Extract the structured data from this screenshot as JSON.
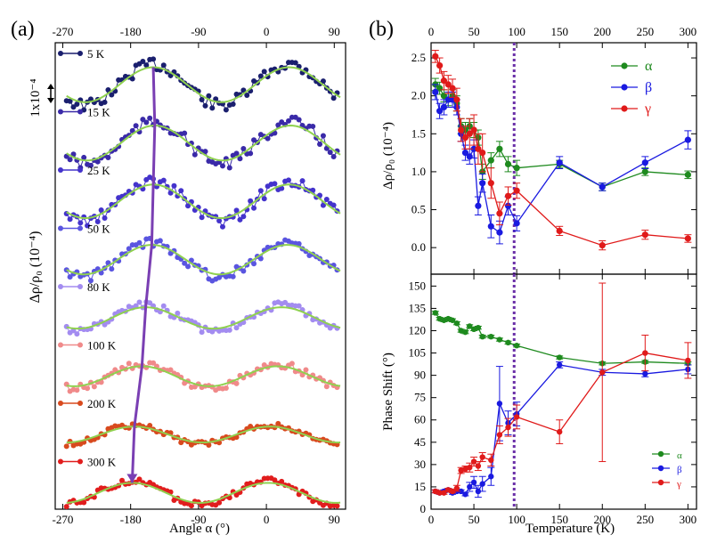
{
  "chart_data": [
    {
      "type": "scatter",
      "panel_label": "(a)",
      "title": "",
      "xlabel": "Angle α (°)",
      "ylabel": "Δρ/ρ₀ (10⁻⁴)",
      "scale_bar_label": "1x10⁻⁴",
      "xlim": [
        -280,
        105
      ],
      "xticks": [
        -270,
        -180,
        -90,
        0,
        90
      ],
      "xtick_labels": [
        "-270",
        "-180",
        "-90",
        "0",
        "90"
      ],
      "series": [
        {
          "name": "5 K",
          "color": "#1a1f6e",
          "offset": 8,
          "amp": 0.95,
          "phase": 132,
          "peak_x": -150
        },
        {
          "name": "15 K",
          "color": "#3a2aa8",
          "offset": 7,
          "amp": 0.95,
          "phase": 128,
          "peak_x": -148
        },
        {
          "name": "25 K",
          "color": "#4433cc",
          "offset": 6,
          "amp": 0.9,
          "phase": 122,
          "peak_x": -150
        },
        {
          "name": "50 K",
          "color": "#5a55e0",
          "offset": 5,
          "amp": 0.75,
          "phase": 115,
          "peak_x": -152
        },
        {
          "name": "80 K",
          "color": "#a38cf0",
          "offset": 4,
          "amp": 0.45,
          "phase": 105,
          "peak_x": -160
        },
        {
          "name": "100 K",
          "color": "#f08a8a",
          "offset": 3,
          "amp": 0.4,
          "phase": 100,
          "peak_x": -165
        },
        {
          "name": "200 K",
          "color": "#d84a1e",
          "offset": 2,
          "amp": 0.25,
          "phase": 95,
          "peak_x": -175
        },
        {
          "name": "300 K",
          "color": "#e11d1d",
          "offset": 1,
          "amp": 0.4,
          "phase": 90,
          "peak_x": -178
        }
      ]
    },
    {
      "type": "line",
      "panel_label": "(b)",
      "xlabel": "Temperature (K)",
      "ylabel": "Δρ/ρ₀ (10⁻⁴)",
      "xlim": [
        0,
        310
      ],
      "ylim": [
        -0.35,
        2.7
      ],
      "xticks": [
        0,
        50,
        100,
        150,
        200,
        250,
        300
      ],
      "xtick_labels": [
        "0",
        "50",
        "100",
        "150",
        "200",
        "250",
        "300"
      ],
      "yticks": [
        0.0,
        0.5,
        1.0,
        1.5,
        2.0,
        2.5
      ],
      "ytick_labels": [
        "0.0",
        "0.5",
        "1.0",
        "1.5",
        "2.0",
        "2.5"
      ],
      "vline_x": 97,
      "series": [
        {
          "name": "α",
          "color": "#1e8a1e",
          "x": [
            5,
            10,
            15,
            20,
            25,
            30,
            35,
            40,
            45,
            50,
            55,
            60,
            70,
            80,
            90,
            100,
            150,
            200,
            250,
            300
          ],
          "y": [
            2.15,
            2.1,
            2.0,
            1.95,
            2.0,
            1.9,
            1.6,
            1.55,
            1.6,
            1.55,
            1.45,
            1.0,
            1.15,
            1.3,
            1.1,
            1.05,
            1.1,
            0.8,
            1.0,
            0.96
          ],
          "err": [
            0.08,
            0.08,
            0.08,
            0.08,
            0.08,
            0.1,
            0.1,
            0.1,
            0.1,
            0.1,
            0.1,
            0.1,
            0.1,
            0.1,
            0.1,
            0.1,
            0.05,
            0.05,
            0.05,
            0.05
          ]
        },
        {
          "name": "β",
          "color": "#1a1ae0",
          "x": [
            5,
            10,
            15,
            20,
            25,
            30,
            35,
            40,
            45,
            50,
            55,
            60,
            70,
            80,
            90,
            100,
            150,
            200,
            250,
            300
          ],
          "y": [
            2.05,
            1.8,
            1.85,
            1.95,
            1.95,
            1.85,
            1.5,
            1.25,
            1.2,
            1.3,
            0.55,
            0.85,
            0.28,
            0.2,
            0.55,
            0.32,
            1.12,
            0.8,
            1.12,
            1.42
          ],
          "err": [
            0.1,
            0.1,
            0.1,
            0.1,
            0.1,
            0.1,
            0.1,
            0.1,
            0.1,
            0.12,
            0.12,
            0.12,
            0.15,
            0.15,
            0.12,
            0.1,
            0.08,
            0.05,
            0.08,
            0.12
          ]
        },
        {
          "name": "γ",
          "color": "#e01a1a",
          "x": [
            5,
            10,
            15,
            20,
            25,
            30,
            35,
            40,
            45,
            50,
            55,
            60,
            70,
            80,
            90,
            100,
            150,
            200,
            250,
            300
          ],
          "y": [
            2.52,
            2.4,
            2.2,
            2.15,
            2.1,
            1.95,
            1.55,
            1.45,
            1.5,
            1.55,
            1.3,
            1.25,
            0.85,
            0.45,
            0.68,
            0.75,
            0.22,
            0.03,
            0.17,
            0.12
          ],
          "err": [
            0.08,
            0.1,
            0.12,
            0.12,
            0.12,
            0.15,
            0.15,
            0.15,
            0.2,
            0.2,
            0.2,
            0.25,
            0.2,
            0.15,
            0.12,
            0.1,
            0.06,
            0.06,
            0.06,
            0.05
          ]
        }
      ]
    },
    {
      "type": "line",
      "xlabel": "Temperature (K)",
      "ylabel": "Phase Shift (°)",
      "xlim": [
        0,
        310
      ],
      "ylim": [
        0,
        158
      ],
      "xticks": [
        0,
        50,
        100,
        150,
        200,
        250,
        300
      ],
      "xtick_labels": [
        "0",
        "50",
        "100",
        "150",
        "200",
        "250",
        "300"
      ],
      "yticks": [
        0,
        15,
        30,
        45,
        60,
        75,
        90,
        105,
        120,
        135,
        150
      ],
      "ytick_labels": [
        "0",
        "15",
        "30",
        "45",
        "60",
        "75",
        "90",
        "105",
        "120",
        "135",
        "150"
      ],
      "vline_x": 97,
      "series": [
        {
          "name": "α",
          "color": "#1e8a1e",
          "x": [
            5,
            10,
            15,
            20,
            25,
            30,
            35,
            40,
            45,
            50,
            55,
            60,
            70,
            80,
            90,
            100,
            150,
            200,
            250,
            300
          ],
          "y": [
            132,
            128,
            127,
            128,
            127,
            125,
            120,
            119,
            123,
            121,
            122,
            116,
            116,
            114,
            112,
            110,
            102,
            98,
            99,
            98
          ],
          "err": [
            1,
            1,
            1,
            1,
            1,
            1,
            1,
            1,
            1,
            1,
            1,
            1,
            1,
            1,
            1,
            1,
            1,
            1,
            1,
            1
          ]
        },
        {
          "name": "β",
          "color": "#1a1ae0",
          "x": [
            5,
            10,
            15,
            20,
            25,
            30,
            35,
            40,
            45,
            50,
            55,
            60,
            70,
            80,
            90,
            100,
            150,
            200,
            250,
            300
          ],
          "y": [
            12,
            11,
            12,
            13,
            11,
            12,
            12,
            10,
            15,
            18,
            12,
            17,
            22,
            71,
            58,
            64,
            97,
            92,
            91,
            94
          ],
          "err": [
            1,
            1,
            1,
            1,
            1,
            1,
            1,
            1,
            3,
            4,
            4,
            5,
            6,
            25,
            8,
            8,
            2,
            2,
            2,
            3
          ]
        },
        {
          "name": "γ",
          "color": "#e01a1a",
          "x": [
            5,
            10,
            15,
            20,
            25,
            30,
            35,
            40,
            45,
            50,
            55,
            60,
            70,
            80,
            90,
            100,
            150,
            200,
            250,
            300
          ],
          "y": [
            12,
            11,
            11,
            13,
            12,
            14,
            26,
            27,
            28,
            32,
            29,
            35,
            33,
            50,
            55,
            62,
            52,
            92,
            105,
            100
          ],
          "err": [
            1,
            1,
            1,
            1,
            1,
            2,
            2,
            2,
            3,
            3,
            3,
            3,
            4,
            6,
            6,
            8,
            8,
            60,
            12,
            12
          ]
        }
      ]
    }
  ]
}
